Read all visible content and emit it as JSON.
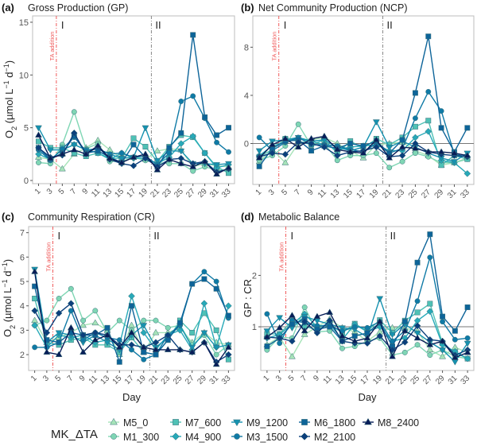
{
  "figure": {
    "legend_title": "MK_ΔTA",
    "x_label": "Day",
    "annotation_ta": "TA addition",
    "phase_labels": [
      "I",
      "II"
    ]
  },
  "series_styles": [
    {
      "name": "M5_0",
      "color": "#a6e3b8",
      "shape": "triangle-up"
    },
    {
      "name": "M1_300",
      "color": "#7fd6b4",
      "shape": "circle"
    },
    {
      "name": "M7_600",
      "color": "#4fc1b5",
      "shape": "square"
    },
    {
      "name": "M4_900",
      "color": "#27a9b8",
      "shape": "diamond"
    },
    {
      "name": "M9_1200",
      "color": "#1592b0",
      "shape": "triangle-down"
    },
    {
      "name": "M3_1500",
      "color": "#0f7aa6",
      "shape": "circle"
    },
    {
      "name": "M6_1800",
      "color": "#0d6499",
      "shape": "square"
    },
    {
      "name": "M2_2100",
      "color": "#0b3f7c",
      "shape": "diamond"
    },
    {
      "name": "M8_2400",
      "color": "#081d58",
      "shape": "triangle-up"
    }
  ],
  "chart_data": [
    {
      "type": "line",
      "panel": "(a)",
      "title": "Gross Production (GP)",
      "xlabel": "",
      "ylabel": "O2 (µmol L-1 d-1)",
      "x": [
        1,
        3,
        5,
        7,
        9,
        11,
        13,
        15,
        17,
        19,
        21,
        23,
        25,
        27,
        29,
        31,
        33
      ],
      "x_ticks": [
        "1",
        "3",
        "5",
        "7",
        "9",
        "11",
        "13",
        "15",
        "17",
        "19",
        "21",
        "23",
        "25",
        "27",
        "29",
        "31",
        "33"
      ],
      "y_ticks": [
        0,
        5,
        10,
        15
      ],
      "ylim": [
        -0.3,
        15.6
      ],
      "vlines": [
        {
          "x": 4,
          "kind": "TA addition"
        },
        {
          "x": 20,
          "kind": "phase"
        }
      ],
      "hline": null,
      "series": [
        {
          "name": "M5_0",
          "values": [
            2.2,
            2.0,
            1.1,
            2.5,
            3.1,
            3.8,
            2.9,
            2.1,
            2.2,
            2.0,
            2.8,
            3.0,
            2.9,
            1.3,
            1.6,
            1.4,
            1.3
          ]
        },
        {
          "name": "M1_300",
          "values": [
            1.7,
            1.6,
            3.4,
            6.5,
            3.0,
            3.5,
            1.8,
            1.8,
            2.2,
            1.9,
            1.7,
            1.6,
            1.6,
            0.9,
            1.3,
            1.0,
            0.9
          ]
        },
        {
          "name": "M7_600",
          "values": [
            3.7,
            3.1,
            3.1,
            2.6,
            2.3,
            2.6,
            2.1,
            2.1,
            4.0,
            3.2,
            1.8,
            3.2,
            4.3,
            4.1,
            2.6,
            1.3,
            0.7
          ]
        },
        {
          "name": "M4_900",
          "values": [
            2.5,
            2.0,
            2.9,
            3.4,
            2.9,
            2.6,
            2.0,
            2.6,
            2.1,
            2.1,
            1.6,
            2.2,
            3.5,
            4.2,
            2.6,
            1.2,
            1.5
          ]
        },
        {
          "name": "M9_1200",
          "values": [
            5.0,
            2.9,
            2.9,
            3.4,
            2.9,
            3.0,
            2.5,
            2.1,
            2.2,
            5.0,
            1.9,
            2.8,
            2.8,
            1.6,
            1.6,
            1.5,
            1.6
          ]
        },
        {
          "name": "M3_1500",
          "values": [
            2.9,
            1.9,
            3.0,
            4.1,
            2.8,
            3.0,
            2.5,
            2.6,
            2.2,
            2.3,
            1.5,
            2.6,
            7.5,
            8.0,
            5.9,
            3.6,
            2.7
          ]
        },
        {
          "name": "M6_1800",
          "values": [
            3.1,
            2.0,
            2.6,
            4.2,
            2.6,
            2.8,
            2.2,
            1.7,
            3.4,
            2.2,
            1.3,
            3.1,
            4.5,
            13.8,
            6.0,
            4.3,
            5.0
          ]
        },
        {
          "name": "M2_2100",
          "values": [
            3.1,
            2.2,
            2.4,
            4.5,
            2.5,
            3.2,
            2.0,
            1.6,
            1.4,
            2.1,
            1.3,
            2.0,
            2.1,
            1.6,
            1.8,
            0.8,
            1.1
          ]
        },
        {
          "name": "M8_2400",
          "values": [
            4.3,
            2.1,
            2.5,
            2.9,
            2.5,
            3.3,
            2.1,
            1.7,
            2.2,
            2.5,
            1.0,
            2.0,
            1.6,
            1.3,
            1.8,
            0.6,
            1.2
          ]
        }
      ]
    },
    {
      "type": "line",
      "panel": "(b)",
      "title": "Net Community Production (NCP)",
      "xlabel": "",
      "ylabel": "",
      "x": [
        1,
        3,
        5,
        7,
        9,
        11,
        13,
        15,
        17,
        19,
        21,
        23,
        25,
        27,
        29,
        31,
        33
      ],
      "x_ticks": [
        "1",
        "3",
        "5",
        "7",
        "9",
        "11",
        "13",
        "15",
        "17",
        "19",
        "21",
        "23",
        "25",
        "27",
        "29",
        "31",
        "33"
      ],
      "y_ticks": [
        0,
        4,
        8
      ],
      "ylim": [
        -3.4,
        10.6
      ],
      "vlines": [
        {
          "x": 4,
          "kind": "TA addition"
        },
        {
          "x": 20,
          "kind": "phase"
        }
      ],
      "hline": 0,
      "series": [
        {
          "name": "M5_0",
          "values": [
            -1.5,
            -0.5,
            -1.6,
            0.0,
            0.3,
            0.5,
            0.0,
            -0.6,
            -1.2,
            -0.1,
            0.0,
            0.1,
            -0.6,
            -1.0,
            -1.8,
            -1.6,
            -1.2
          ]
        },
        {
          "name": "M1_300",
          "values": [
            -1.4,
            -1.0,
            -0.2,
            1.6,
            -0.2,
            0.0,
            -1.4,
            -1.0,
            -1.0,
            -0.8,
            -2.0,
            -1.5,
            -0.8,
            -1.1,
            -1.6,
            -1.6,
            -1.3
          ]
        },
        {
          "name": "M7_600",
          "values": [
            -1.1,
            -0.5,
            0.4,
            0.2,
            -0.1,
            0.3,
            -0.8,
            0.2,
            -0.4,
            0.4,
            -0.1,
            0.5,
            1.4,
            1.9,
            -1.8,
            -1.0,
            -1.3
          ]
        },
        {
          "name": "M4_900",
          "values": [
            -1.0,
            -0.2,
            0.1,
            0.4,
            0.2,
            -0.1,
            -0.5,
            -0.3,
            -0.2,
            -0.1,
            -0.6,
            -0.6,
            0.5,
            1.0,
            -1.4,
            -1.6,
            -2.5
          ]
        },
        {
          "name": "M9_1200",
          "values": [
            -0.6,
            0.2,
            0.3,
            0.5,
            0.2,
            0.3,
            -0.3,
            -0.6,
            -0.3,
            1.8,
            -0.3,
            0.2,
            -0.3,
            -0.8,
            -1.2,
            -1.5,
            -0.8
          ]
        },
        {
          "name": "M3_1500",
          "values": [
            0.5,
            -0.6,
            0.1,
            0.5,
            -0.1,
            -0.1,
            -0.2,
            -0.5,
            -0.7,
            0.0,
            -0.8,
            -0.4,
            2.1,
            4.3,
            2.7,
            -0.9,
            -1.1
          ]
        },
        {
          "name": "M6_1800",
          "values": [
            -1.9,
            -0.4,
            0.2,
            0.3,
            -0.6,
            -0.2,
            -0.4,
            0.0,
            -0.2,
            0.2,
            -0.8,
            0.3,
            4.2,
            8.9,
            1.3,
            -0.7,
            1.3
          ]
        },
        {
          "name": "M2_2100",
          "values": [
            -1.1,
            -0.8,
            -0.9,
            0.1,
            0.0,
            -0.3,
            -1.0,
            -0.7,
            -0.6,
            -0.3,
            -1.1,
            -1.0,
            0.0,
            -0.7,
            -0.9,
            -1.0,
            -1.1
          ]
        },
        {
          "name": "M8_2400",
          "values": [
            -1.2,
            -0.1,
            0.4,
            -0.3,
            0.4,
            0.6,
            -0.5,
            -0.7,
            -0.8,
            0.3,
            -1.2,
            -0.3,
            -0.4,
            -0.7,
            -0.7,
            -0.8,
            -1.0
          ]
        }
      ]
    },
    {
      "type": "line",
      "panel": "(c)",
      "title": "Community Respiration (CR)",
      "xlabel": "Day",
      "ylabel": "O2 (µmol L-1 d-1)",
      "x": [
        1,
        3,
        5,
        7,
        9,
        11,
        13,
        15,
        17,
        19,
        21,
        23,
        25,
        27,
        29,
        31,
        33
      ],
      "x_ticks": [
        "1",
        "3",
        "5",
        "7",
        "9",
        "11",
        "13",
        "15",
        "17",
        "19",
        "21",
        "23",
        "25",
        "27",
        "29",
        "31",
        "33"
      ],
      "y_ticks": [
        2,
        3,
        4,
        5,
        6,
        7
      ],
      "ylim": [
        1.35,
        7.25
      ],
      "vlines": [
        {
          "x": 4,
          "kind": "TA addition"
        },
        {
          "x": 20,
          "kind": "phase"
        }
      ],
      "hline": null,
      "series": [
        {
          "name": "M5_0",
          "values": [
            3.4,
            2.5,
            2.7,
            2.9,
            3.2,
            3.3,
            3.0,
            2.0,
            3.2,
            2.1,
            2.9,
            2.9,
            3.1,
            2.5,
            2.9,
            2.5,
            2.4
          ]
        },
        {
          "name": "M1_300",
          "values": [
            3.2,
            3.4,
            4.3,
            4.7,
            3.4,
            3.8,
            2.9,
            3.4,
            3.0,
            3.4,
            3.4,
            3.1,
            3.2,
            2.4,
            2.8,
            2.0,
            2.4
          ]
        },
        {
          "name": "M7_600",
          "values": [
            4.3,
            2.5,
            2.4,
            2.6,
            2.7,
            2.4,
            2.4,
            2.1,
            2.7,
            2.1,
            2.0,
            2.6,
            3.4,
            2.9,
            3.7,
            3.0,
            1.8
          ]
        },
        {
          "name": "M4_900",
          "values": [
            3.2,
            2.3,
            2.8,
            2.7,
            2.8,
            2.5,
            2.6,
            2.4,
            4.4,
            2.9,
            2.2,
            2.8,
            3.0,
            2.2,
            4.1,
            2.3,
            4.0
          ]
        },
        {
          "name": "M9_1200",
          "values": [
            5.5,
            2.5,
            2.9,
            2.8,
            2.5,
            2.8,
            2.5,
            2.2,
            2.8,
            3.2,
            2.3,
            2.7,
            3.2,
            2.3,
            2.9,
            2.3,
            2.4
          ]
        },
        {
          "name": "M3_1500",
          "values": [
            2.3,
            2.3,
            2.5,
            3.8,
            2.6,
            2.9,
            2.7,
            2.6,
            2.2,
            1.8,
            2.0,
            2.8,
            3.2,
            4.9,
            5.4,
            5.0,
            3.5
          ]
        },
        {
          "name": "M6_1800",
          "values": [
            4.8,
            2.6,
            2.5,
            2.9,
            2.8,
            2.8,
            3.1,
            1.7,
            4.0,
            2.1,
            2.0,
            2.6,
            3.3,
            4.9,
            5.1,
            4.7,
            3.6
          ]
        },
        {
          "name": "M2_2100",
          "values": [
            3.8,
            2.9,
            3.7,
            4.1,
            2.8,
            2.9,
            2.8,
            2.4,
            2.4,
            2.3,
            2.5,
            2.8,
            2.2,
            2.1,
            2.5,
            1.7,
            2.0
          ]
        },
        {
          "name": "M8_2400",
          "values": [
            5.4,
            2.1,
            2.0,
            3.1,
            2.1,
            2.6,
            2.8,
            2.3,
            2.9,
            2.3,
            2.2,
            2.2,
            2.2,
            2.1,
            2.5,
            1.6,
            2.3
          ]
        }
      ]
    },
    {
      "type": "line",
      "panel": "(d)",
      "title": "Metabolic Balance",
      "xlabel": "Day",
      "ylabel": "GP : CR",
      "x": [
        1,
        3,
        5,
        7,
        9,
        11,
        13,
        15,
        17,
        19,
        21,
        23,
        25,
        27,
        29,
        31,
        33
      ],
      "x_ticks": [
        "1",
        "3",
        "5",
        "7",
        "9",
        "11",
        "13",
        "15",
        "17",
        "19",
        "21",
        "23",
        "25",
        "27",
        "29",
        "31",
        "33"
      ],
      "y_ticks": [
        1,
        2
      ],
      "ylim": [
        0.15,
        2.95
      ],
      "vlines": [
        {
          "x": 4,
          "kind": "TA addition"
        },
        {
          "x": 20,
          "kind": "phase"
        }
      ],
      "hline": 1,
      "series": [
        {
          "name": "M5_0",
          "values": [
            0.65,
            0.8,
            0.42,
            0.85,
            1.0,
            1.15,
            0.98,
            0.9,
            0.72,
            0.9,
            0.98,
            0.97,
            0.92,
            0.55,
            0.42,
            0.6,
            0.5
          ]
        },
        {
          "name": "M1_300",
          "values": [
            0.55,
            0.8,
            0.78,
            1.38,
            0.9,
            0.92,
            0.58,
            0.62,
            0.72,
            0.78,
            0.45,
            0.5,
            0.65,
            0.45,
            0.55,
            0.42,
            0.38
          ]
        },
        {
          "name": "M7_600",
          "values": [
            0.86,
            0.86,
            1.12,
            1.0,
            0.95,
            1.05,
            0.88,
            1.06,
            0.92,
            1.13,
            0.88,
            1.12,
            1.28,
            1.45,
            0.68,
            0.5,
            0.38
          ]
        },
        {
          "name": "M4_900",
          "values": [
            0.78,
            0.85,
            1.05,
            1.25,
            1.0,
            1.05,
            0.75,
            1.05,
            0.9,
            1.0,
            0.72,
            0.78,
            1.12,
            1.3,
            0.65,
            0.52,
            0.38
          ]
        },
        {
          "name": "M9_1200",
          "values": [
            0.92,
            1.18,
            0.98,
            1.2,
            1.12,
            1.05,
            0.98,
            0.95,
            0.8,
            1.55,
            0.85,
            1.05,
            0.88,
            0.7,
            0.55,
            0.32,
            0.68
          ]
        },
        {
          "name": "M3_1500",
          "values": [
            1.25,
            0.68,
            1.12,
            1.08,
            1.02,
            1.02,
            0.92,
            1.0,
            0.98,
            1.1,
            0.72,
            0.92,
            1.5,
            2.35,
            1.1,
            0.75,
            0.78
          ]
        },
        {
          "name": "M6_1800",
          "values": [
            0.62,
            0.78,
            1.05,
            1.15,
            0.95,
            1.0,
            0.72,
            0.82,
            0.88,
            1.08,
            0.62,
            1.1,
            2.25,
            2.8,
            1.2,
            0.92,
            1.38
          ]
        },
        {
          "name": "M2_2100",
          "values": [
            0.8,
            0.78,
            0.72,
            1.1,
            0.88,
            1.12,
            0.72,
            0.68,
            0.68,
            0.82,
            0.55,
            0.7,
            1.02,
            0.75,
            0.72,
            0.45,
            0.55
          ]
        },
        {
          "name": "M8_2400",
          "values": [
            0.8,
            0.98,
            1.22,
            0.92,
            1.2,
            1.28,
            0.82,
            0.72,
            0.78,
            1.1,
            0.42,
            0.92,
            0.78,
            0.65,
            0.72,
            0.4,
            0.5
          ]
        }
      ]
    }
  ]
}
